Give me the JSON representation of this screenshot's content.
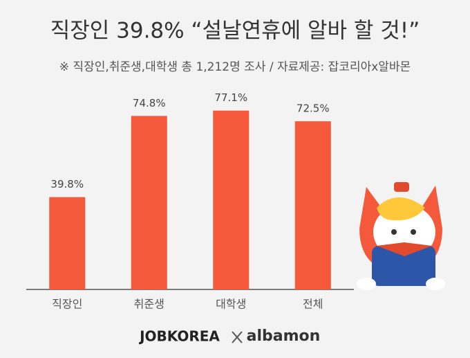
{
  "chart_data": {
    "type": "bar",
    "title": "직장인 39.8% “설날연휴에 알바 할 것!”",
    "subtitle": "※ 직장인,취준생,대학생 총 1,212명 조사 / 자료제공: 잡코리아x알바몬",
    "categories": [
      "직장인",
      "취준생",
      "대학생",
      "전체"
    ],
    "values": [
      39.8,
      74.8,
      77.1,
      72.5
    ],
    "value_labels": [
      "39.8%",
      "74.8%",
      "77.1%",
      "72.5%"
    ],
    "color": "#f4593b",
    "ylim": [
      0,
      100
    ],
    "logos": [
      "JOBKOREA",
      "albamon"
    ]
  }
}
